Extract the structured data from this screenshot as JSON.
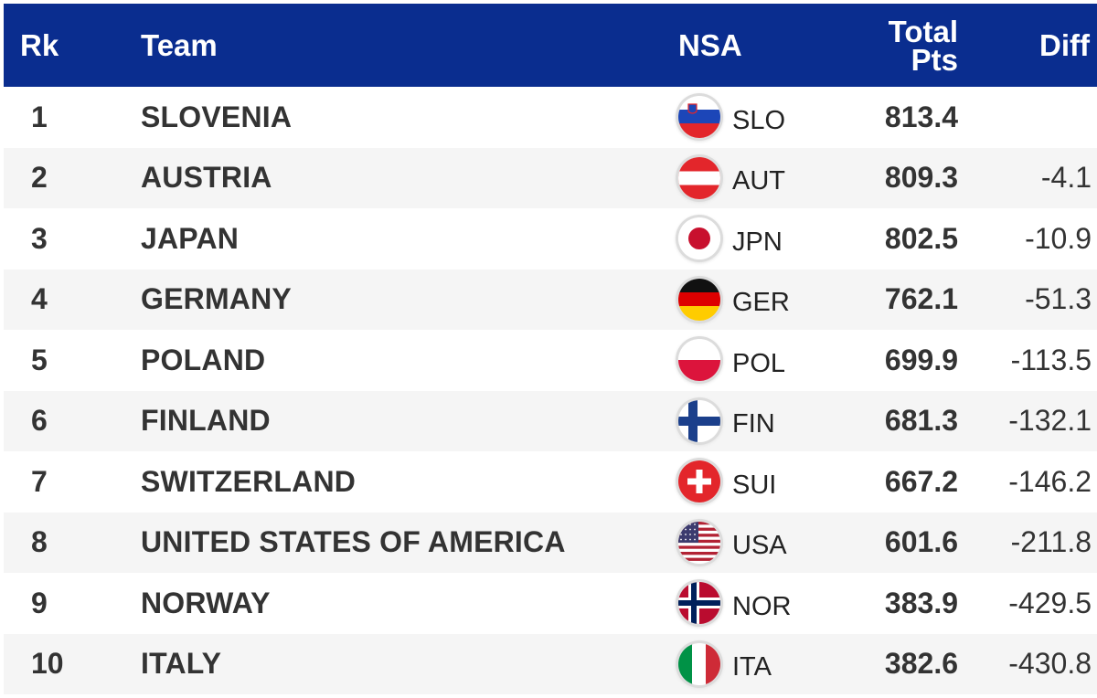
{
  "header": {
    "rk": "Rk",
    "team": "Team",
    "nsa": "NSA",
    "total_line1": "Total",
    "total_line2": "Pts",
    "diff": "Diff"
  },
  "rows": [
    {
      "rk": "1",
      "team": "SLOVENIA",
      "code": "SLO",
      "total": "813.4",
      "diff": "",
      "flag": "slovenia-flag-icon"
    },
    {
      "rk": "2",
      "team": "AUSTRIA",
      "code": "AUT",
      "total": "809.3",
      "diff": "-4.1",
      "flag": "austria-flag-icon"
    },
    {
      "rk": "3",
      "team": "JAPAN",
      "code": "JPN",
      "total": "802.5",
      "diff": "-10.9",
      "flag": "japan-flag-icon"
    },
    {
      "rk": "4",
      "team": "GERMANY",
      "code": "GER",
      "total": "762.1",
      "diff": "-51.3",
      "flag": "germany-flag-icon"
    },
    {
      "rk": "5",
      "team": "POLAND",
      "code": "POL",
      "total": "699.9",
      "diff": "-113.5",
      "flag": "poland-flag-icon"
    },
    {
      "rk": "6",
      "team": "FINLAND",
      "code": "FIN",
      "total": "681.3",
      "diff": "-132.1",
      "flag": "finland-flag-icon"
    },
    {
      "rk": "7",
      "team": "SWITZERLAND",
      "code": "SUI",
      "total": "667.2",
      "diff": "-146.2",
      "flag": "switzerland-flag-icon"
    },
    {
      "rk": "8",
      "team": "UNITED STATES OF AMERICA",
      "code": "USA",
      "total": "601.6",
      "diff": "-211.8",
      "flag": "usa-flag-icon"
    },
    {
      "rk": "9",
      "team": "NORWAY",
      "code": "NOR",
      "total": "383.9",
      "diff": "-429.5",
      "flag": "norway-flag-icon"
    },
    {
      "rk": "10",
      "team": "ITALY",
      "code": "ITA",
      "total": "382.6",
      "diff": "-430.8",
      "flag": "italy-flag-icon"
    }
  ],
  "colors": {
    "header_bg": "#0a2d8f",
    "header_text": "#ffffff",
    "row_alt_bg": "#f5f5f5"
  }
}
